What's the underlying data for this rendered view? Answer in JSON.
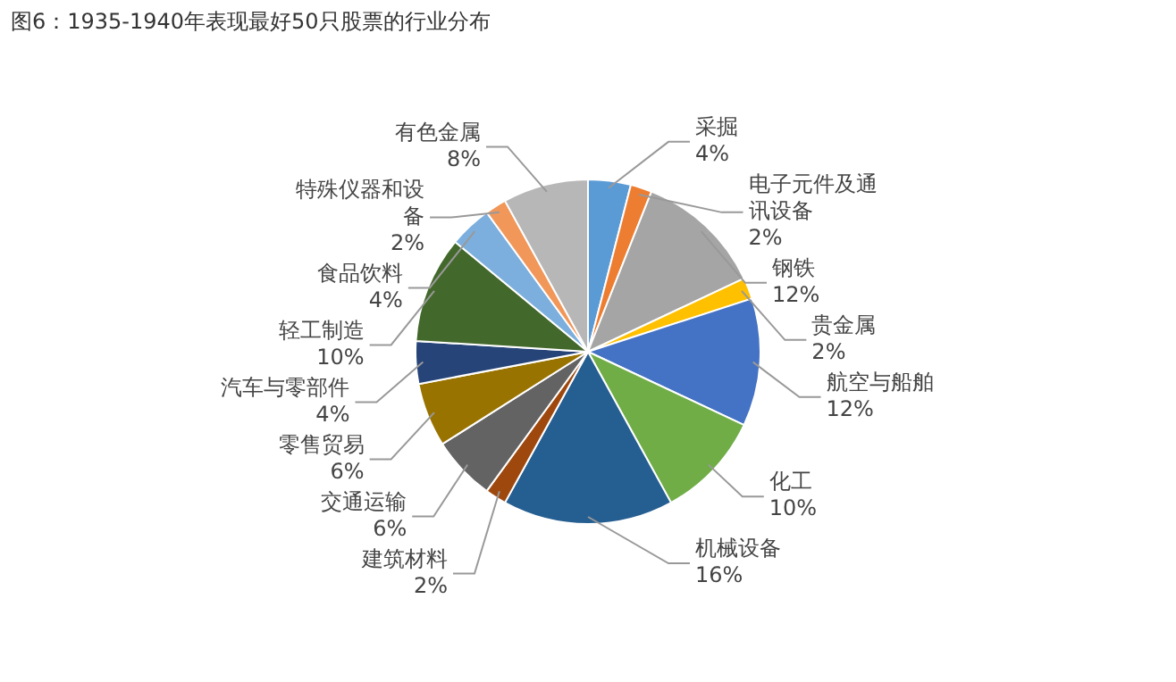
{
  "chart_data": {
    "type": "pie",
    "title": "图6：1935-1940年表现最好50只股票的行业分布",
    "categories": [
      "采掘",
      "电子元件及通讯设备",
      "钢铁",
      "贵金属",
      "航空与船舶",
      "化工",
      "机械设备",
      "建筑材料",
      "交通运输",
      "零售贸易",
      "汽车与零部件",
      "轻工制造",
      "食品饮料",
      "特殊仪器和设备",
      "有色金属"
    ],
    "values": [
      4,
      2,
      12,
      2,
      12,
      10,
      16,
      2,
      6,
      6,
      4,
      10,
      4,
      2,
      8
    ],
    "value_labels": [
      "4%",
      "2%",
      "12%",
      "2%",
      "12%",
      "10%",
      "16%",
      "2%",
      "6%",
      "6%",
      "4%",
      "10%",
      "4%",
      "2%",
      "8%"
    ],
    "colors": [
      "#5b9bd5",
      "#ed7d31",
      "#a5a5a5",
      "#ffc000",
      "#4472c4",
      "#70ad47",
      "#255e91",
      "#9e480e",
      "#636363",
      "#997300",
      "#264478",
      "#43682b",
      "#7cafdd",
      "#f1975a",
      "#b7b7b7"
    ],
    "legend": false
  }
}
